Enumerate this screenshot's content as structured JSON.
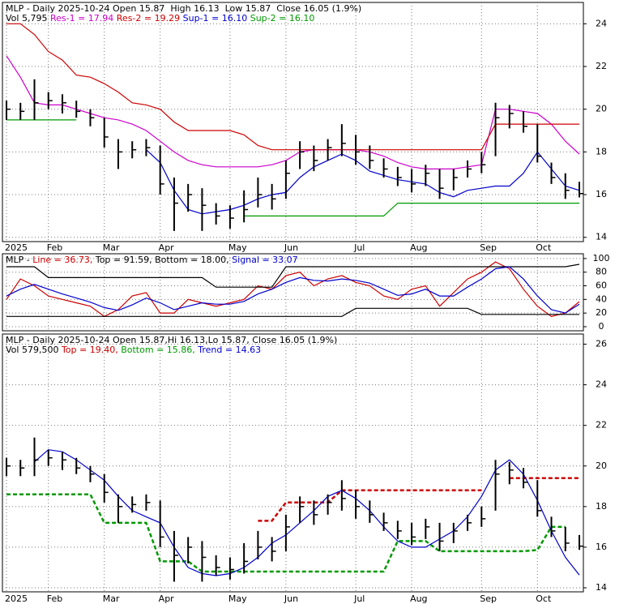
{
  "chart_data": [
    {
      "type": "ohlc",
      "title": "MLP - Daily 2025-10-24 Open 15.87  High 16.13  Low 15.87  Close 16.05 (1.9%)",
      "volume_label": "Vol 5,795",
      "categories": [
        "2025",
        null,
        null,
        "Feb",
        null,
        null,
        null,
        "Mar",
        null,
        null,
        null,
        "Apr",
        null,
        null,
        null,
        null,
        "May",
        null,
        null,
        null,
        "Jun",
        null,
        null,
        null,
        null,
        "Jul",
        null,
        null,
        null,
        "Aug",
        null,
        null,
        null,
        null,
        "Sep",
        null,
        null,
        null,
        "Oct",
        null,
        null,
        null
      ],
      "close": [
        20.0,
        19.9,
        20.3,
        20.4,
        20.3,
        19.9,
        19.6,
        18.7,
        18.0,
        18.1,
        18.2,
        16.5,
        15.6,
        16.0,
        15.5,
        15.0,
        14.9,
        15.3,
        16.0,
        15.8,
        17.0,
        18.0,
        17.6,
        18.2,
        18.4,
        18.0,
        17.6,
        17.2,
        16.8,
        16.5,
        17.0,
        16.3,
        16.8,
        17.2,
        17.4,
        19.6,
        19.8,
        19.2,
        17.8,
        16.8,
        16.2,
        16.05
      ],
      "high": [
        20.4,
        20.3,
        21.4,
        20.8,
        20.7,
        20.4,
        20.0,
        19.6,
        18.6,
        18.5,
        18.6,
        18.3,
        16.8,
        16.5,
        16.3,
        15.6,
        15.5,
        16.2,
        16.8,
        16.5,
        17.6,
        18.5,
        18.3,
        18.6,
        19.3,
        18.8,
        18.3,
        17.7,
        17.3,
        17.2,
        17.4,
        17.2,
        17.2,
        17.6,
        18.0,
        20.3,
        20.2,
        19.9,
        19.3,
        17.5,
        17.0,
        16.6
      ],
      "low": [
        19.5,
        19.5,
        19.5,
        20.0,
        19.8,
        19.6,
        19.2,
        18.2,
        17.2,
        17.7,
        17.8,
        16.0,
        14.3,
        15.2,
        14.3,
        14.6,
        14.4,
        14.7,
        15.4,
        15.3,
        15.8,
        17.2,
        17.1,
        17.6,
        17.8,
        17.4,
        17.2,
        16.8,
        16.4,
        16.1,
        16.4,
        15.8,
        16.2,
        16.8,
        17.0,
        17.8,
        19.1,
        18.9,
        17.5,
        16.5,
        15.8,
        15.87
      ],
      "price_color": "#000000",
      "series": [
        {
          "name": "Res-1 = 17.94",
          "color": "#cc00cc",
          "values": [
            22.5,
            21.5,
            20.3,
            20.2,
            20.2,
            20.0,
            19.8,
            19.6,
            19.5,
            19.3,
            19.0,
            18.5,
            18.0,
            17.6,
            17.4,
            17.3,
            17.3,
            17.3,
            17.3,
            17.4,
            17.6,
            18.0,
            18.1,
            18.1,
            18.1,
            18.1,
            18.0,
            17.8,
            17.5,
            17.3,
            17.2,
            17.2,
            17.2,
            17.3,
            17.4,
            20.0,
            20.0,
            19.9,
            19.8,
            19.3,
            18.5,
            17.9
          ]
        },
        {
          "name": "Res-2 = 19.29",
          "color": "#cc0000",
          "values": [
            24.0,
            24.0,
            23.5,
            22.7,
            22.3,
            21.6,
            21.5,
            21.2,
            20.8,
            20.3,
            20.2,
            20.0,
            19.4,
            19.0,
            19.0,
            19.0,
            19.0,
            18.8,
            18.3,
            18.1,
            18.1,
            18.1,
            18.1,
            18.1,
            18.1,
            18.1,
            18.1,
            18.1,
            18.1,
            18.1,
            18.1,
            18.1,
            18.1,
            18.1,
            18.1,
            19.3,
            19.3,
            19.3,
            19.3,
            19.3,
            19.3,
            19.3
          ]
        },
        {
          "name": "Sup-1 = 16.10",
          "color": "#0000cc",
          "values": [
            null,
            null,
            null,
            null,
            null,
            null,
            null,
            null,
            null,
            null,
            18.1,
            17.5,
            16.2,
            15.3,
            15.1,
            15.2,
            15.3,
            15.5,
            15.8,
            16.0,
            16.1,
            16.8,
            17.3,
            17.6,
            17.9,
            17.6,
            17.1,
            16.9,
            16.7,
            16.6,
            16.5,
            16.1,
            15.9,
            16.2,
            16.3,
            16.4,
            16.4,
            17.0,
            18.0,
            17.2,
            16.4,
            16.2
          ]
        },
        {
          "name": "Sup-2 = 16.10",
          "color": "#009900",
          "values": [
            19.5,
            19.5,
            19.5,
            19.5,
            19.5,
            19.5,
            null,
            null,
            null,
            null,
            null,
            null,
            null,
            null,
            null,
            null,
            null,
            15.0,
            15.0,
            15.0,
            15.0,
            15.0,
            15.0,
            15.0,
            15.0,
            15.0,
            15.0,
            15.0,
            15.6,
            15.6,
            15.6,
            15.6,
            15.6,
            15.6,
            15.6,
            15.6,
            15.6,
            15.6,
            15.6,
            15.6,
            15.6,
            15.6
          ]
        }
      ],
      "ylim": [
        13.8,
        25.0
      ],
      "yticks": [
        14,
        16,
        18,
        20,
        22,
        24
      ],
      "grid": true
    },
    {
      "type": "line",
      "prefix": "MLP - ",
      "series": [
        {
          "name": "Line = 36.73,",
          "color": "#cc0000",
          "values": [
            40,
            70,
            60,
            45,
            40,
            35,
            30,
            15,
            25,
            45,
            50,
            20,
            20,
            40,
            35,
            30,
            35,
            40,
            60,
            55,
            75,
            80,
            60,
            70,
            75,
            65,
            60,
            45,
            40,
            55,
            60,
            30,
            50,
            70,
            80,
            95,
            85,
            55,
            30,
            15,
            20,
            36.73
          ]
        },
        {
          "name": "Top = 91.59,",
          "color": "#000000",
          "values": [
            88,
            88,
            88,
            72,
            72,
            72,
            72,
            72,
            72,
            72,
            72,
            72,
            72,
            72,
            72,
            58,
            58,
            58,
            58,
            58,
            88,
            88,
            88,
            88,
            88,
            88,
            88,
            88,
            88,
            88,
            88,
            88,
            88,
            88,
            88,
            88,
            88,
            88,
            88,
            88,
            88,
            91.59
          ]
        },
        {
          "name": "Bottom = 18.00,",
          "color": "#000000",
          "values": [
            15,
            15,
            15,
            15,
            15,
            15,
            15,
            15,
            15,
            15,
            15,
            15,
            15,
            15,
            15,
            15,
            15,
            15,
            15,
            15,
            15,
            15,
            15,
            15,
            15,
            27,
            27,
            27,
            27,
            27,
            27,
            27,
            27,
            27,
            18,
            18,
            18,
            18,
            18,
            18,
            18,
            18.0
          ]
        },
        {
          "name": "Signal = 33.07",
          "color": "#0000cc",
          "values": [
            45,
            55,
            62,
            55,
            48,
            42,
            36,
            28,
            24,
            32,
            42,
            35,
            25,
            30,
            35,
            33,
            33,
            37,
            48,
            55,
            65,
            72,
            68,
            67,
            70,
            68,
            64,
            55,
            46,
            48,
            55,
            45,
            45,
            58,
            70,
            85,
            88,
            70,
            45,
            25,
            20,
            33.07
          ]
        }
      ],
      "ylim": [
        -6,
        107
      ],
      "yticks": [
        0,
        20,
        40,
        60,
        80,
        100
      ],
      "grid": true
    },
    {
      "type": "ohlc",
      "title": "MLP - Daily 2025-10-24 Open 15.87,Hi 16.13,Lo 15.87, Close 16.05 (1.9%)",
      "volume_label": "Vol 579,500",
      "series": [
        {
          "name": "Top = 19.40,",
          "color": "#cc0000",
          "dash": true,
          "values": [
            null,
            null,
            null,
            null,
            null,
            null,
            null,
            null,
            null,
            null,
            null,
            null,
            null,
            null,
            null,
            null,
            null,
            null,
            17.3,
            17.3,
            18.2,
            18.2,
            18.2,
            18.2,
            18.8,
            18.8,
            18.8,
            18.8,
            18.8,
            18.8,
            18.8,
            18.8,
            18.8,
            18.8,
            18.8,
            null,
            19.4,
            19.4,
            19.4,
            19.4,
            19.4,
            19.4
          ]
        },
        {
          "name": "Bottom = 15.86,",
          "color": "#009900",
          "dash": true,
          "values": [
            18.6,
            18.6,
            18.6,
            18.6,
            18.6,
            18.6,
            18.6,
            17.2,
            17.2,
            17.2,
            17.2,
            15.3,
            15.3,
            15.3,
            14.8,
            14.8,
            14.8,
            14.8,
            14.8,
            14.8,
            14.8,
            14.8,
            14.8,
            14.8,
            14.8,
            14.8,
            14.8,
            14.8,
            16.3,
            16.3,
            16.3,
            15.8,
            15.8,
            15.8,
            15.8,
            15.8,
            15.8,
            15.8,
            15.86,
            17.0,
            17.0,
            null
          ]
        },
        {
          "name": "Trend = 14.63",
          "color": "#0000cc",
          "values": [
            null,
            null,
            20.2,
            20.8,
            20.7,
            20.3,
            19.8,
            19.3,
            18.5,
            17.8,
            17.5,
            17.2,
            16.0,
            15.0,
            14.7,
            14.6,
            14.7,
            15.0,
            15.5,
            16.2,
            16.6,
            17.2,
            17.8,
            18.5,
            18.8,
            18.4,
            17.8,
            17.0,
            16.3,
            16.0,
            16.0,
            16.4,
            16.8,
            17.5,
            18.5,
            19.8,
            20.3,
            19.6,
            18.3,
            16.8,
            15.5,
            14.63
          ]
        }
      ],
      "ylim": [
        13.8,
        26.5
      ],
      "yticks": [
        14,
        16,
        18,
        20,
        22,
        24,
        26
      ],
      "grid": true
    }
  ]
}
